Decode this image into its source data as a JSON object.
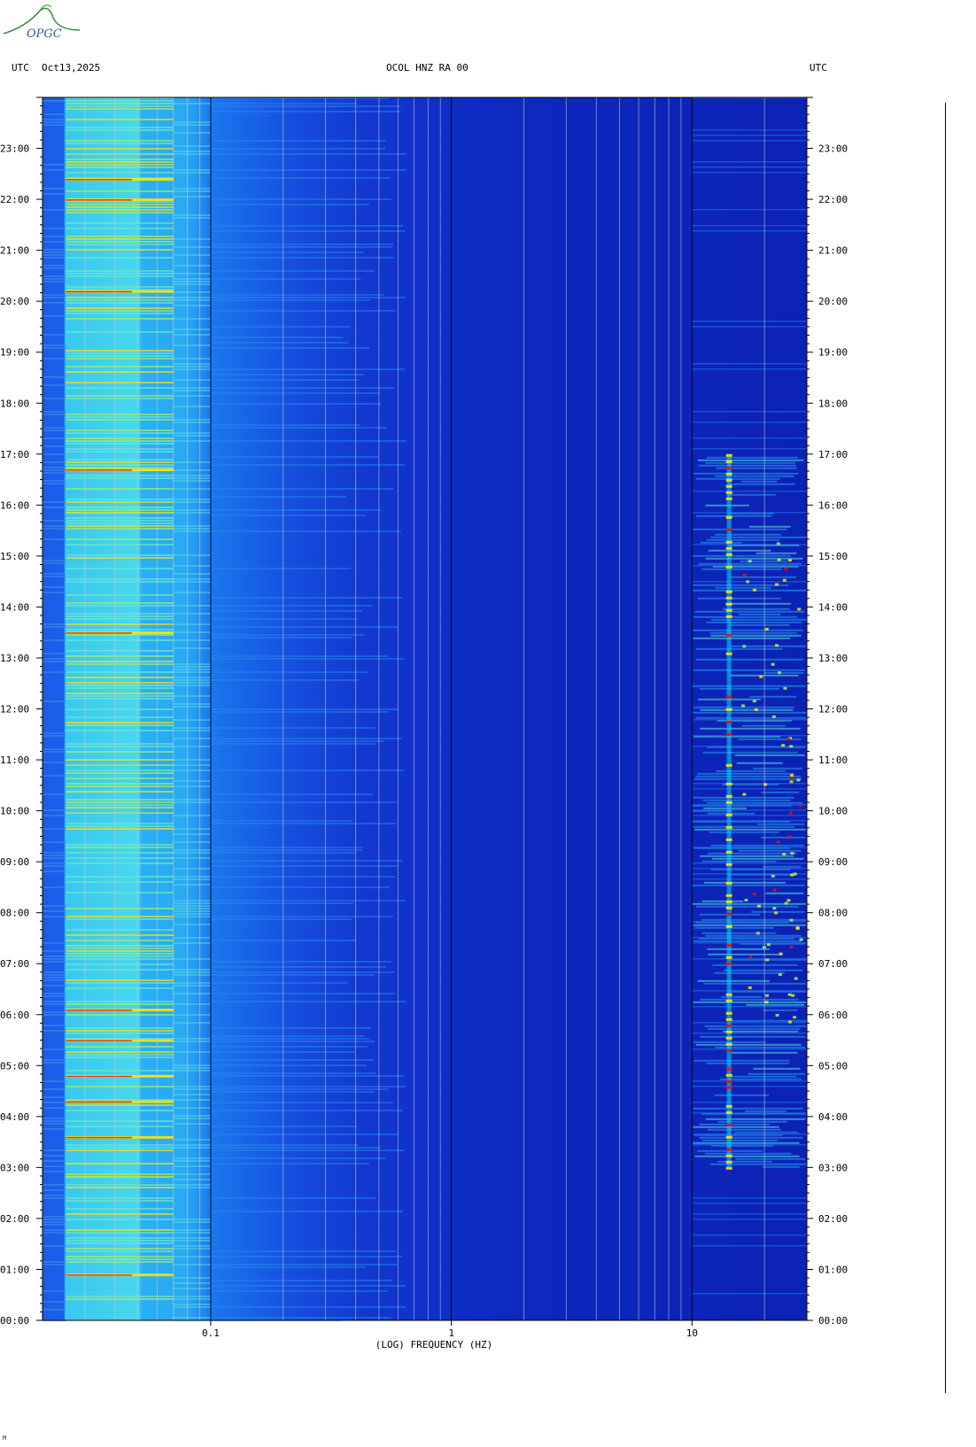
{
  "logo": {
    "text": "OPGC",
    "icon": "opgc-volcano-logo"
  },
  "header": {
    "left_label": "UTC",
    "date": "Oct13,2025",
    "station": "OCOL HNZ RA 00",
    "right_label": "UTC"
  },
  "corner_mark": "M",
  "colors": {
    "background_low": "#0a1eb4",
    "mid": "#1e90ff",
    "cyan": "#00e0ff",
    "green_yellow": "#a8f060",
    "yellow": "#ffe400",
    "red": "#e01010"
  },
  "chart_data": {
    "type": "heatmap",
    "title": "OCOL HNZ RA 00",
    "xlabel": "(LOG) FREQUENCY (HZ)",
    "x_scale": "log",
    "x_range_hz": [
      0.02,
      30
    ],
    "x_ticks": [
      {
        "value": 0.1,
        "label": "0.1"
      },
      {
        "value": 1,
        "label": "1"
      },
      {
        "value": 10,
        "label": "10"
      }
    ],
    "y_range_hours": [
      0,
      24
    ],
    "y_ticks_left": [
      "23:00",
      "22:00",
      "21:00",
      "20:00",
      "19:00",
      "18:00",
      "17:00",
      "16:00",
      "15:00",
      "14:00",
      "13:00",
      "12:00",
      "11:00",
      "10:00",
      "09:00",
      "08:00",
      "07:00",
      "06:00",
      "05:00",
      "04:00",
      "03:00",
      "02:00",
      "01:00",
      "00:00"
    ],
    "y_ticks_right": [
      "23:00",
      "22:00",
      "21:00",
      "20:00",
      "19:00",
      "18:00",
      "17:00",
      "16:00",
      "15:00",
      "14:00",
      "13:00",
      "12:00",
      "11:00",
      "10:00",
      "09:00",
      "08:00",
      "07:00",
      "06:00",
      "05:00",
      "04:00",
      "03:00",
      "02:00",
      "01:00",
      "00:00"
    ],
    "y_tick_hours": [
      23,
      22,
      21,
      20,
      19,
      18,
      17,
      16,
      15,
      14,
      13,
      12,
      11,
      10,
      9,
      8,
      7,
      6,
      5,
      4,
      3,
      2,
      1,
      0
    ],
    "grid_lines": "vertical at each log decade sub-division",
    "features": [
      {
        "description": "strong low-frequency band",
        "freq_hz": [
          0.025,
          0.07
        ],
        "hours": [
          0,
          24
        ],
        "level": "cyan-yellow"
      },
      {
        "description": "high-frequency activity",
        "freq_hz": [
          10,
          30
        ],
        "hours": [
          3,
          17
        ],
        "level": "cyan-yellow-red"
      },
      {
        "description": "narrow peak line",
        "freq_hz": [
          14,
          14.5
        ],
        "hours": [
          3,
          17
        ],
        "level": "yellow-red"
      }
    ]
  }
}
